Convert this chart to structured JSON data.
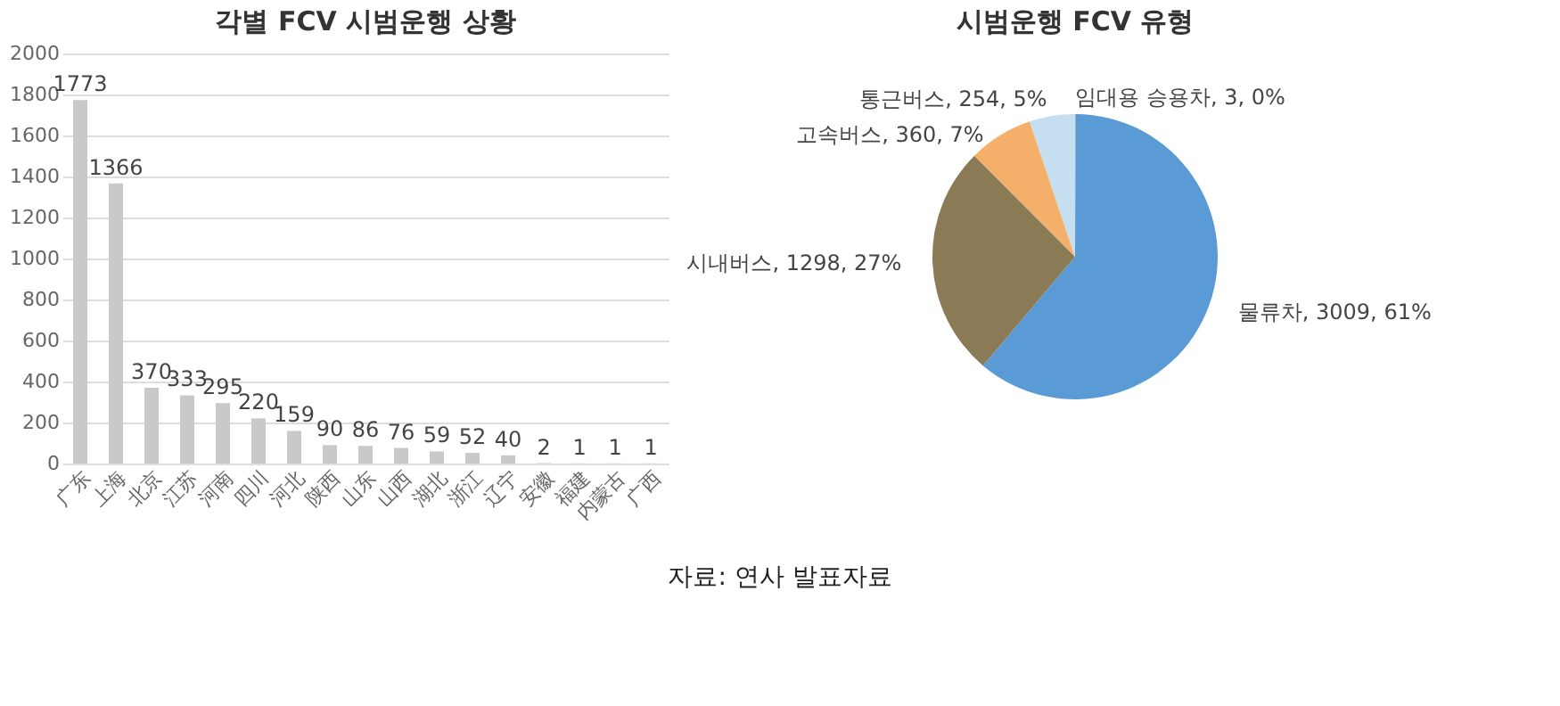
{
  "chart_data": [
    {
      "type": "bar",
      "title": "각별 FCV 시범운행 상황",
      "categories": [
        "广东",
        "上海",
        "北京",
        "江苏",
        "河南",
        "四川",
        "河北",
        "陕西",
        "山东",
        "山西",
        "湖北",
        "浙江",
        "辽宁",
        "安徽",
        "福建",
        "内蒙古",
        "广西"
      ],
      "values": [
        1773,
        1366,
        370,
        333,
        295,
        220,
        159,
        90,
        86,
        76,
        59,
        52,
        40,
        2,
        1,
        1,
        1
      ],
      "color": "#c9c9c9",
      "ylim": [
        0,
        2000
      ],
      "yticks": [
        0,
        200,
        400,
        600,
        800,
        1000,
        1200,
        1400,
        1600,
        1800,
        2000
      ],
      "grid": "y",
      "data_labels": true,
      "annotations": [
        "자료: 연사 발표자료"
      ]
    },
    {
      "type": "pie",
      "title": "시범운행 FCV 유형",
      "categories": [
        "임대용 승용차",
        "물류차",
        "시내버스",
        "고속버스",
        "통근버스"
      ],
      "values": [
        3,
        3009,
        1298,
        360,
        254
      ],
      "colors": [
        "#a5a5a5",
        "#5b9bd5",
        "#8a7a55",
        "#f4b06a",
        "#c5dff0"
      ],
      "value_labels": [
        "3, 0%",
        "3009, 61%",
        "1298, 27%",
        "360, 7%",
        "254, 5%"
      ]
    }
  ]
}
